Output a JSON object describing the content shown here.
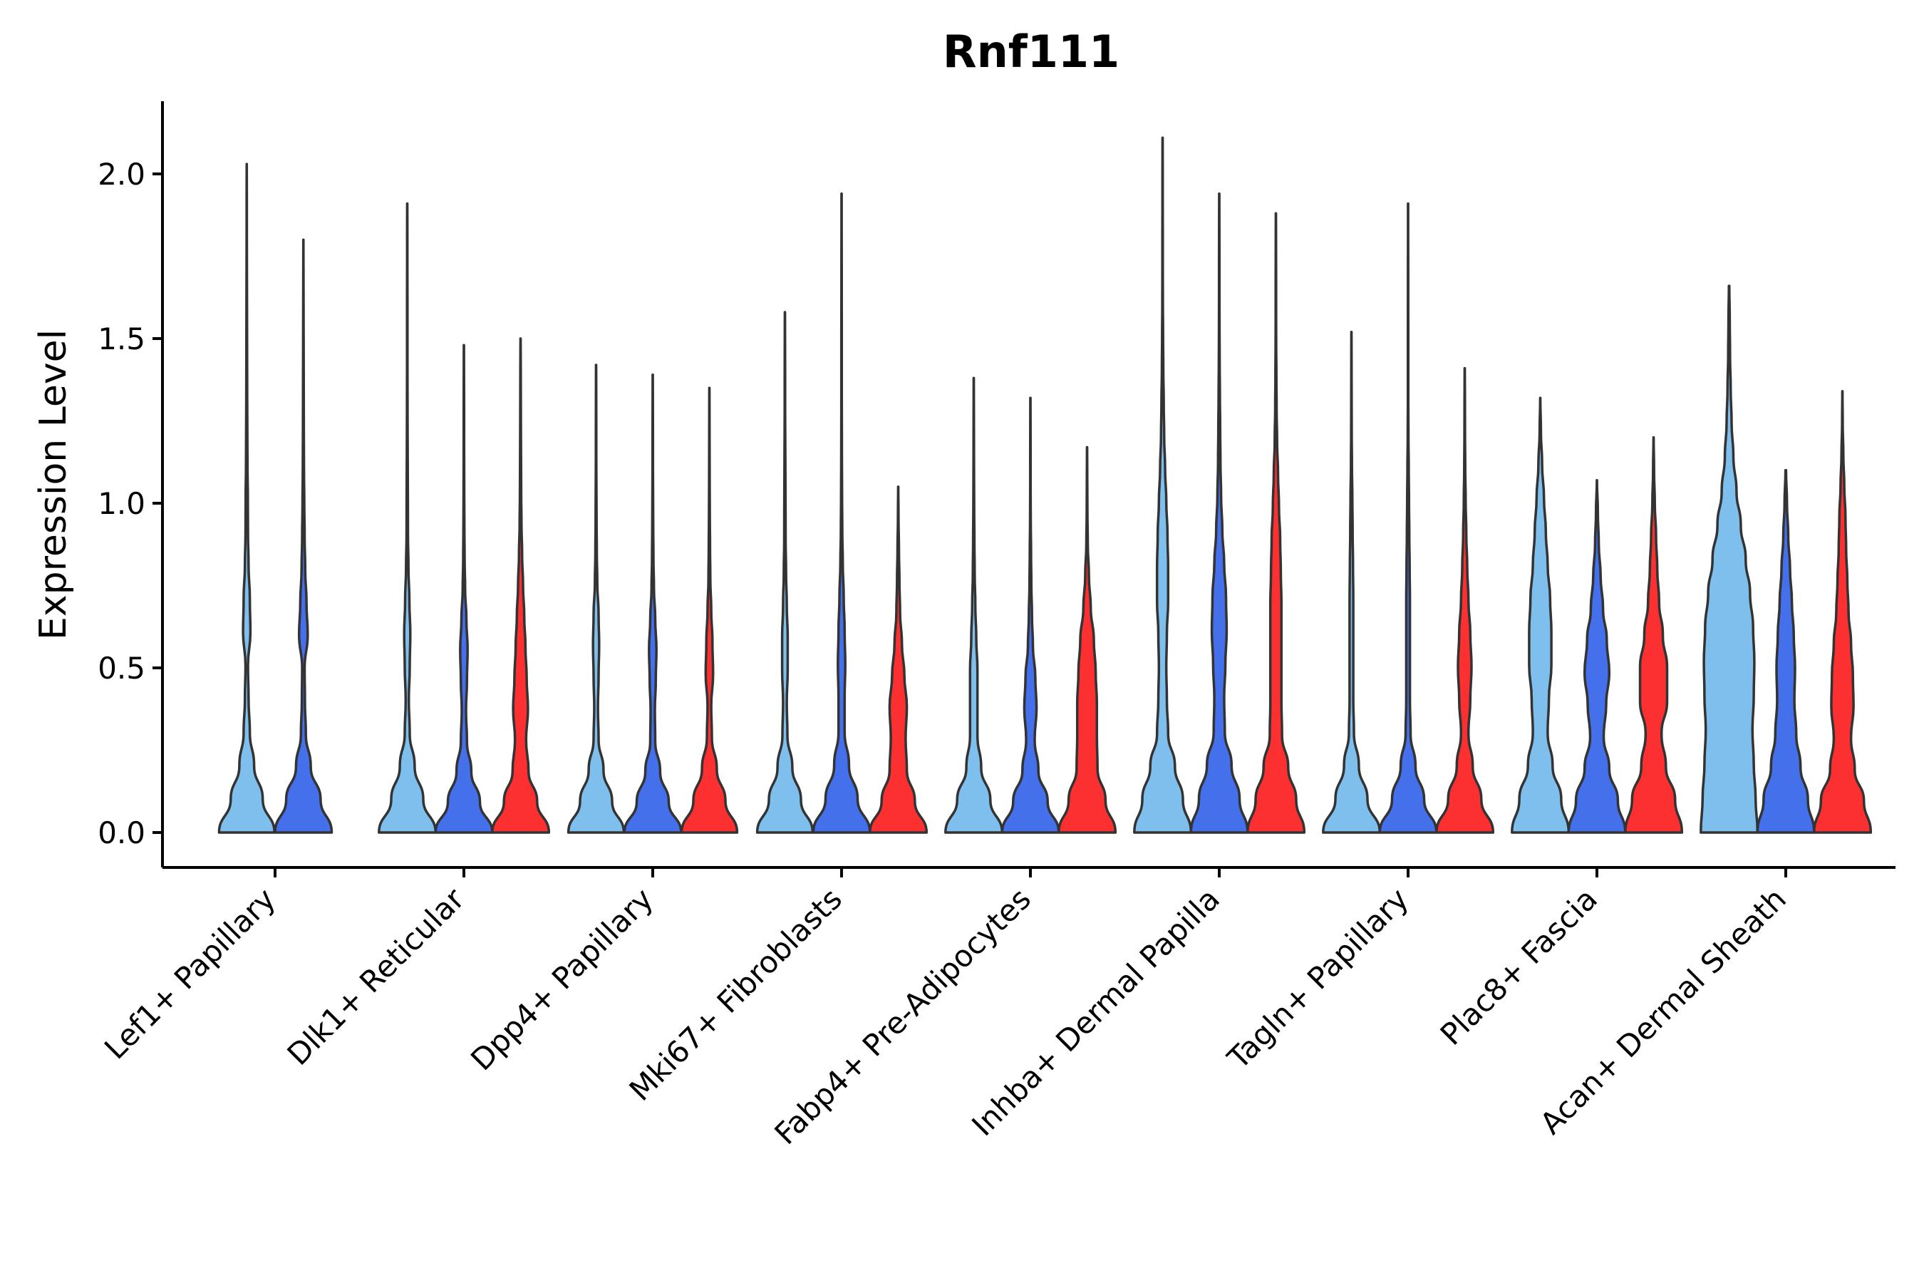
{
  "chart_data": {
    "type": "violin",
    "title": "Rnf111",
    "xlabel": "",
    "ylabel": "Expression Level",
    "ylim": [
      -0.1,
      2.2
    ],
    "yticks": [
      0.0,
      0.5,
      1.0,
      1.5,
      2.0
    ],
    "ytick_labels": [
      "0.0",
      "0.5",
      "1.0",
      "1.5",
      "2.0"
    ],
    "groups": [
      "light-blue",
      "blue",
      "red"
    ],
    "colors": {
      "light-blue": "#7fbfed",
      "blue": "#4470eb",
      "red": "#fd3031"
    },
    "categories": [
      {
        "name": "Lef1+ Papillary",
        "violins": [
          {
            "group": "light-blue",
            "max": 2.03,
            "widths": [
              0.45,
              0.26,
              0.12,
              0.05,
              0.03,
              0.02,
              0.06,
              0.05,
              0.03,
              0.02,
              0.018,
              0.012,
              0.01,
              0.008,
              0.006,
              0.005,
              0.004,
              0.003,
              0.002,
              0.002,
              0.001
            ]
          },
          {
            "group": "blue",
            "max": 1.8,
            "widths": [
              0.5,
              0.28,
              0.12,
              0.04,
              0.025,
              0.02,
              0.07,
              0.05,
              0.03,
              0.02,
              0.015,
              0.01,
              0.008,
              0.006,
              0.005,
              0.004,
              0.003,
              0.002,
              0.001
            ]
          }
        ]
      },
      {
        "name": "Dlk1+ Reticular",
        "violins": [
          {
            "group": "light-blue",
            "max": 1.91,
            "widths": [
              0.47,
              0.26,
              0.12,
              0.04,
              0.025,
              0.04,
              0.05,
              0.035,
              0.02,
              0.012,
              0.01,
              0.008,
              0.006,
              0.005,
              0.004,
              0.003,
              0.003,
              0.002,
              0.002,
              0.001
            ]
          },
          {
            "group": "blue",
            "max": 1.48,
            "widths": [
              0.46,
              0.26,
              0.12,
              0.05,
              0.035,
              0.05,
              0.06,
              0.04,
              0.02,
              0.012,
              0.008,
              0.006,
              0.005,
              0.004,
              0.003,
              0.002,
              0.001
            ]
          },
          {
            "group": "red",
            "max": 1.5,
            "widths": [
              0.46,
              0.27,
              0.13,
              0.09,
              0.12,
              0.1,
              0.08,
              0.06,
              0.04,
              0.025,
              0.015,
              0.01,
              0.008,
              0.006,
              0.005,
              0.003,
              0.001
            ]
          }
        ]
      },
      {
        "name": "Dpp4+ Papillary",
        "violins": [
          {
            "group": "light-blue",
            "max": 1.42,
            "widths": [
              0.45,
              0.26,
              0.12,
              0.04,
              0.03,
              0.04,
              0.05,
              0.04,
              0.02,
              0.012,
              0.008,
              0.006,
              0.004,
              0.003,
              0.002,
              0.001
            ]
          },
          {
            "group": "blue",
            "max": 1.39,
            "widths": [
              0.46,
              0.26,
              0.12,
              0.04,
              0.035,
              0.05,
              0.06,
              0.04,
              0.02,
              0.012,
              0.008,
              0.006,
              0.004,
              0.003,
              0.002,
              0.001
            ]
          },
          {
            "group": "red",
            "max": 1.35,
            "widths": [
              0.45,
              0.26,
              0.12,
              0.04,
              0.03,
              0.06,
              0.05,
              0.03,
              0.015,
              0.01,
              0.007,
              0.005,
              0.003,
              0.002,
              0.001
            ]
          }
        ]
      },
      {
        "name": "Mki67+ Fibroblasts",
        "violins": [
          {
            "group": "light-blue",
            "max": 1.58,
            "widths": [
              0.45,
              0.26,
              0.12,
              0.04,
              0.03,
              0.045,
              0.045,
              0.03,
              0.018,
              0.012,
              0.01,
              0.008,
              0.006,
              0.004,
              0.003,
              0.002,
              0.001
            ]
          },
          {
            "group": "blue",
            "max": 1.94,
            "widths": [
              0.46,
              0.26,
              0.12,
              0.05,
              0.05,
              0.06,
              0.05,
              0.035,
              0.02,
              0.012,
              0.008,
              0.006,
              0.005,
              0.004,
              0.003,
              0.003,
              0.002,
              0.002,
              0.001,
              0.001
            ]
          },
          {
            "group": "red",
            "max": 1.05,
            "widths": [
              0.46,
              0.27,
              0.14,
              0.12,
              0.14,
              0.1,
              0.06,
              0.03,
              0.02,
              0.012,
              0.005,
              0.001
            ]
          }
        ]
      },
      {
        "name": "Fabp4+ Pre-Adipocytes",
        "violins": [
          {
            "group": "light-blue",
            "max": 1.38,
            "widths": [
              0.47,
              0.27,
              0.12,
              0.06,
              0.06,
              0.06,
              0.04,
              0.025,
              0.015,
              0.01,
              0.007,
              0.005,
              0.003,
              0.002,
              0.001
            ]
          },
          {
            "group": "blue",
            "max": 1.32,
            "widths": [
              0.46,
              0.28,
              0.13,
              0.07,
              0.1,
              0.08,
              0.04,
              0.025,
              0.015,
              0.01,
              0.006,
              0.004,
              0.003,
              0.002,
              0.001
            ]
          },
          {
            "group": "red",
            "max": 1.17,
            "widths": [
              0.46,
              0.3,
              0.17,
              0.16,
              0.16,
              0.14,
              0.11,
              0.06,
              0.03,
              0.012,
              0.006,
              0.003,
              0.001
            ]
          }
        ]
      },
      {
        "name": "Inhba+ Dermal Papilla",
        "violins": [
          {
            "group": "light-blue",
            "max": 2.11,
            "widths": [
              0.46,
              0.33,
              0.2,
              0.09,
              0.07,
              0.06,
              0.07,
              0.09,
              0.09,
              0.08,
              0.06,
              0.04,
              0.025,
              0.018,
              0.012,
              0.008,
              0.005,
              0.004,
              0.003,
              0.002,
              0.002,
              0.001
            ]
          },
          {
            "group": "blue",
            "max": 1.94,
            "widths": [
              0.46,
              0.33,
              0.2,
              0.09,
              0.08,
              0.1,
              0.12,
              0.11,
              0.08,
              0.05,
              0.03,
              0.02,
              0.015,
              0.01,
              0.007,
              0.005,
              0.004,
              0.003,
              0.002,
              0.001
            ]
          },
          {
            "group": "red",
            "max": 1.88,
            "widths": [
              0.46,
              0.33,
              0.2,
              0.1,
              0.09,
              0.09,
              0.09,
              0.09,
              0.08,
              0.07,
              0.05,
              0.035,
              0.02,
              0.012,
              0.008,
              0.005,
              0.004,
              0.003,
              0.002,
              0.001
            ]
          }
        ]
      },
      {
        "name": "Tagln+ Papillary",
        "violins": [
          {
            "group": "light-blue",
            "max": 1.52,
            "widths": [
              0.47,
              0.26,
              0.12,
              0.04,
              0.03,
              0.03,
              0.03,
              0.03,
              0.025,
              0.02,
              0.015,
              0.008,
              0.005,
              0.003,
              0.002,
              0.001
            ]
          },
          {
            "group": "blue",
            "max": 1.91,
            "widths": [
              0.46,
              0.26,
              0.12,
              0.04,
              0.03,
              0.03,
              0.03,
              0.03,
              0.025,
              0.02,
              0.015,
              0.01,
              0.006,
              0.004,
              0.003,
              0.003,
              0.002,
              0.002,
              0.001,
              0.001
            ]
          },
          {
            "group": "red",
            "max": 1.41,
            "widths": [
              0.46,
              0.27,
              0.13,
              0.06,
              0.09,
              0.11,
              0.09,
              0.06,
              0.04,
              0.025,
              0.015,
              0.008,
              0.005,
              0.003,
              0.001
            ]
          }
        ]
      },
      {
        "name": "Plac8+ Fascia",
        "violins": [
          {
            "group": "light-blue",
            "max": 1.32,
            "widths": [
              0.46,
              0.34,
              0.2,
              0.12,
              0.14,
              0.18,
              0.18,
              0.16,
              0.12,
              0.09,
              0.06,
              0.03,
              0.01,
              0.001
            ]
          },
          {
            "group": "blue",
            "max": 1.07,
            "widths": [
              0.46,
              0.34,
              0.2,
              0.11,
              0.15,
              0.2,
              0.16,
              0.1,
              0.06,
              0.03,
              0.015,
              0.001
            ]
          },
          {
            "group": "red",
            "max": 1.2,
            "widths": [
              0.46,
              0.35,
              0.2,
              0.13,
              0.22,
              0.22,
              0.15,
              0.09,
              0.06,
              0.04,
              0.02,
              0.008,
              0.001
            ]
          }
        ]
      },
      {
        "name": "Acan+ Dermal Sheath",
        "violins": [
          {
            "group": "light-blue",
            "max": 1.66,
            "widths": [
              0.46,
              0.43,
              0.4,
              0.38,
              0.4,
              0.41,
              0.39,
              0.34,
              0.27,
              0.19,
              0.12,
              0.07,
              0.04,
              0.025,
              0.015,
              0.01,
              0.004
            ]
          },
          {
            "group": "blue",
            "max": 1.1,
            "widths": [
              0.46,
              0.36,
              0.24,
              0.17,
              0.14,
              0.15,
              0.13,
              0.1,
              0.07,
              0.04,
              0.02,
              0.005
            ]
          },
          {
            "group": "red",
            "max": 1.34,
            "widths": [
              0.46,
              0.35,
              0.2,
              0.14,
              0.18,
              0.17,
              0.14,
              0.1,
              0.08,
              0.06,
              0.05,
              0.03,
              0.015,
              0.005,
              0.001
            ]
          }
        ]
      }
    ]
  }
}
